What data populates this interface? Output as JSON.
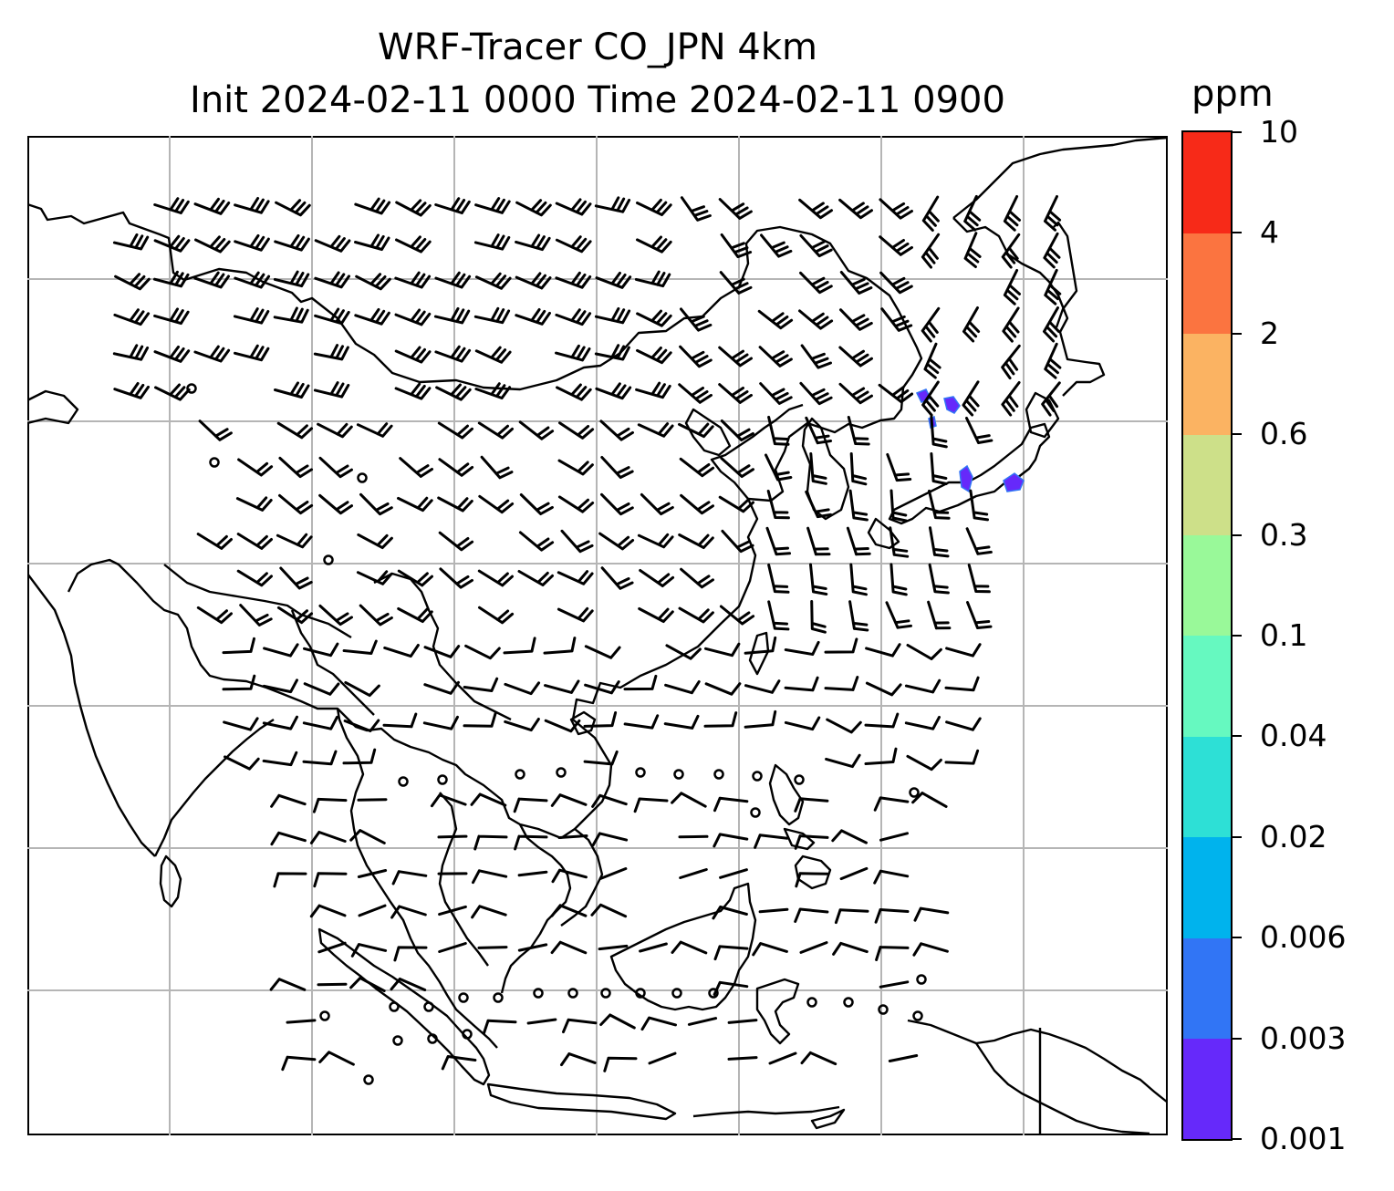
{
  "title": {
    "line1": "WRF-Tracer CO_JPN 4km",
    "line2": "Init 2024-02-11 0000 Time 2024-02-11 0900"
  },
  "colorbar": {
    "unit": "ppm",
    "levels": [
      "0.001",
      "0.003",
      "0.006",
      "0.02",
      "0.04",
      "0.1",
      "0.3",
      "0.6",
      "2",
      "4",
      "10"
    ],
    "colors": [
      "#6629fa",
      "#3175f5",
      "#00b3ed",
      "#2de0d6",
      "#66f9c0",
      "#99f999",
      "#cde089",
      "#fbb362",
      "#fb7440",
      "#f72a18"
    ]
  },
  "map": {
    "gridlines": true,
    "tracer_max_level": "0.006",
    "barb_color": "#000000",
    "coast_color": "#000000"
  }
}
